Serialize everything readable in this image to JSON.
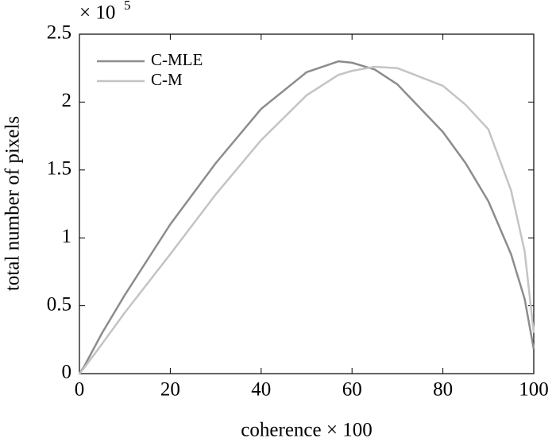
{
  "chart_data": {
    "type": "line",
    "x_label": "coherence × 100",
    "y_label": "total number of pixels",
    "y_multiplier": "× 10",
    "y_multiplier_exponent": "5",
    "x": [
      0,
      1,
      5,
      10,
      20,
      30,
      40,
      50,
      57,
      60,
      65,
      70,
      80,
      85,
      90,
      95,
      98,
      100
    ],
    "series": [
      {
        "name": "C-MLE",
        "color": "#8c8c8c",
        "values": [
          0,
          0.05,
          0.3,
          0.58,
          1.1,
          1.55,
          1.95,
          2.22,
          2.3,
          2.29,
          2.24,
          2.13,
          1.78,
          1.55,
          1.27,
          0.88,
          0.55,
          0.18
        ]
      },
      {
        "name": "C-M",
        "color": "#c4c4c4",
        "values": [
          0,
          0.04,
          0.22,
          0.45,
          0.88,
          1.32,
          1.72,
          2.05,
          2.2,
          2.23,
          2.26,
          2.25,
          2.12,
          1.98,
          1.8,
          1.35,
          0.9,
          0.3
        ]
      }
    ],
    "xlim": [
      0,
      100
    ],
    "xticks": [
      0,
      20,
      40,
      60,
      80,
      100
    ],
    "ylim": [
      0,
      2.5
    ],
    "yticks": [
      0,
      0.5,
      1,
      1.5,
      2,
      2.5
    ],
    "legend": "upper-left"
  }
}
